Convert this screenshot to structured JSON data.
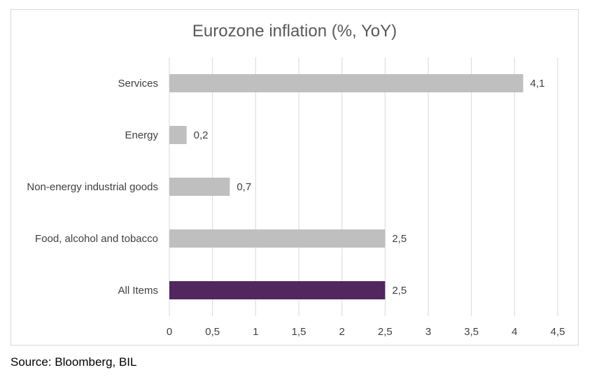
{
  "chart_data": {
    "type": "bar",
    "orientation": "horizontal",
    "title": "Eurozone inflation (%, YoY)",
    "categories": [
      "Services",
      "Energy",
      "Non-energy industrial goods",
      "Food, alcohol and tobacco",
      "All Items"
    ],
    "values": [
      4.1,
      0.2,
      0.7,
      2.5,
      2.5
    ],
    "data_labels": [
      "4,1",
      "0,2",
      "0,7",
      "2,5",
      "2,5"
    ],
    "colors": [
      "#bfbfbf",
      "#bfbfbf",
      "#bfbfbf",
      "#bfbfbf",
      "#52265e"
    ],
    "xlim": [
      0,
      4.5
    ],
    "xticks": [
      0,
      0.5,
      1,
      1.5,
      2,
      2.5,
      3,
      3.5,
      4,
      4.5
    ],
    "xtick_labels": [
      "0",
      "0,5",
      "1",
      "1,5",
      "2",
      "2,5",
      "3",
      "3,5",
      "4",
      "4,5"
    ],
    "grid": "vertical",
    "gridline_color": "#d9d9d9",
    "legend": "none"
  },
  "source": "Source: Bloomberg, BIL"
}
